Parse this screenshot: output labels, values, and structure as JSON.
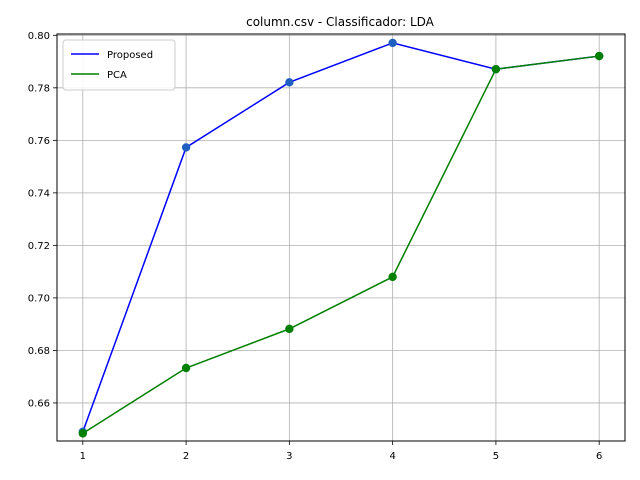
{
  "chart_data": {
    "type": "line",
    "title": "column.csv - Classificador: LDA",
    "xlabel": "",
    "ylabel": "",
    "x": [
      1,
      2,
      3,
      4,
      5,
      6
    ],
    "xlim": [
      0.75,
      6.25
    ],
    "ylim": [
      0.6455,
      0.8005
    ],
    "xticks": [
      1,
      2,
      3,
      4,
      5,
      6
    ],
    "yticks": [
      0.66,
      0.68,
      0.7,
      0.72,
      0.74,
      0.76,
      0.78,
      0.8
    ],
    "ytick_labels": [
      "0.66",
      "0.68",
      "0.70",
      "0.72",
      "0.74",
      "0.76",
      "0.78",
      "0.80"
    ],
    "grid": true,
    "legend_position": "top-left",
    "series": [
      {
        "name": "Proposed",
        "values": [
          0.649,
          0.7573,
          0.7821,
          0.7971,
          0.7871,
          0.7921
        ],
        "line_color": "#0000ff",
        "marker_color": "#1f5fbf"
      },
      {
        "name": "PCA",
        "values": [
          0.6484,
          0.6733,
          0.6882,
          0.708,
          0.7871,
          0.7921
        ],
        "line_color": "#008000",
        "marker_color": "#008000"
      }
    ]
  }
}
